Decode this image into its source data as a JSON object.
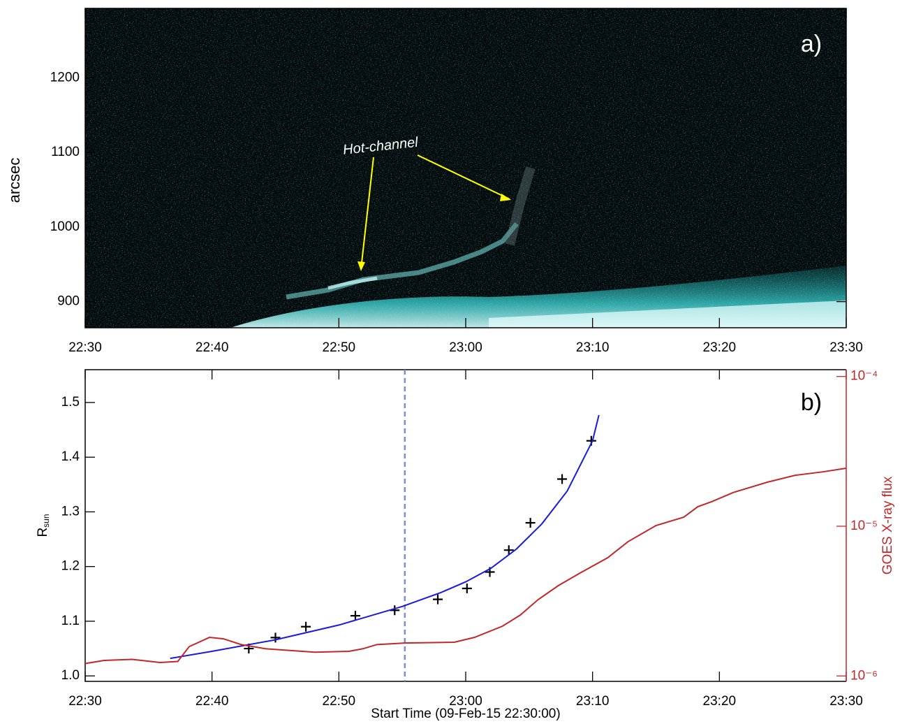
{
  "chart_data": [
    {
      "type": "image",
      "ylabel": "arcsec",
      "annotation": "Hot-channel",
      "panel_label": "a)",
      "xlim": [
        0,
        60
      ],
      "xticks": [
        {
          "value": 0,
          "label": "22:30"
        },
        {
          "value": 10,
          "label": "22:40"
        },
        {
          "value": 20,
          "label": "22:50"
        },
        {
          "value": 30,
          "label": "23:00"
        },
        {
          "value": 40,
          "label": "23:10"
        },
        {
          "value": 50,
          "label": "23:20"
        },
        {
          "value": 60,
          "label": "23:30"
        }
      ],
      "ylim": [
        865,
        1293
      ],
      "yticks": [
        900,
        1000,
        1100,
        1200
      ]
    },
    {
      "type": "line",
      "panel_label": "b)",
      "xlabel": "Start Time (09-Feb-15 22:30:00)",
      "ylabel": "R",
      "ylabel_subscript": "sun",
      "y2label": "GOES X-ray flux",
      "y2log": true,
      "y2color": "#c0282a",
      "xlim": [
        0,
        60
      ],
      "xticks": [
        {
          "value": 0,
          "label": "22:30"
        },
        {
          "value": 10,
          "label": "22:40"
        },
        {
          "value": 20,
          "label": "22:50"
        },
        {
          "value": 30,
          "label": "23:00"
        },
        {
          "value": 40,
          "label": "23:10"
        },
        {
          "value": 50,
          "label": "23:20"
        },
        {
          "value": 60,
          "label": "23:30"
        }
      ],
      "ylim": [
        0.99,
        1.56
      ],
      "yticks": [
        {
          "value": 1.0,
          "label": "1.0"
        },
        1.1,
        1.2,
        1.3,
        1.4,
        1.5
      ],
      "y2lim": [
        9.2e-07,
        0.000111
      ],
      "y2ticks": [
        {
          "value": 1e-06,
          "label": "10⁻⁶"
        },
        {
          "value": 1e-05,
          "label": "10⁻⁵"
        },
        {
          "value": 0.0001,
          "label": "10⁻⁴"
        }
      ],
      "vlines": [
        {
          "x": 25.2,
          "color": "#7b8fd0"
        }
      ],
      "series": [
        {
          "type": "scatter",
          "color": "#000000",
          "x": [
            12.9,
            15.0,
            17.4,
            21.3,
            24.4,
            27.8,
            30.1,
            31.9,
            33.4,
            35.1,
            37.6,
            39.9
          ],
          "values": [
            1.05,
            1.07,
            1.09,
            1.11,
            1.12,
            1.14,
            1.16,
            1.19,
            1.23,
            1.28,
            1.36,
            1.43
          ]
        },
        {
          "type": "line",
          "color": "#1a1adc",
          "x": [
            6.7,
            10,
            15,
            20,
            25,
            28,
            30,
            32,
            34,
            36,
            38,
            40,
            40.5
          ],
          "values": [
            1.032,
            1.045,
            1.066,
            1.093,
            1.127,
            1.152,
            1.172,
            1.197,
            1.232,
            1.278,
            1.338,
            1.43,
            1.477
          ]
        },
        {
          "type": "line",
          "color": "#c0282a",
          "axis": "y2",
          "x": [
            0,
            1.5,
            3.7,
            5.9,
            7.3,
            8.2,
            9.8,
            10.9,
            12.3,
            14.2,
            18.1,
            20.8,
            21.9,
            23.0,
            25.2,
            29.1,
            30.7,
            32.9,
            34.3,
            35.7,
            37.3,
            39.0,
            41.2,
            42.8,
            45.0,
            47.2,
            48.3,
            49.4,
            51.1,
            53.8,
            56.0,
            58.2,
            60
          ],
          "values": [
            1.21e-06,
            1.27e-06,
            1.29e-06,
            1.23e-06,
            1.25e-06,
            1.57e-06,
            1.81e-06,
            1.77e-06,
            1.62e-06,
            1.52e-06,
            1.44e-06,
            1.46e-06,
            1.52e-06,
            1.62e-06,
            1.66e-06,
            1.68e-06,
            1.81e-06,
            2.15e-06,
            2.55e-06,
            3.23e-06,
            4.01e-06,
            4.86e-06,
            6.16e-06,
            7.89e-06,
            1.01e-05,
            1.15e-05,
            1.35e-05,
            1.46e-05,
            1.68e-05,
            1.97e-05,
            2.19e-05,
            2.31e-05,
            2.44e-05
          ]
        }
      ]
    }
  ]
}
